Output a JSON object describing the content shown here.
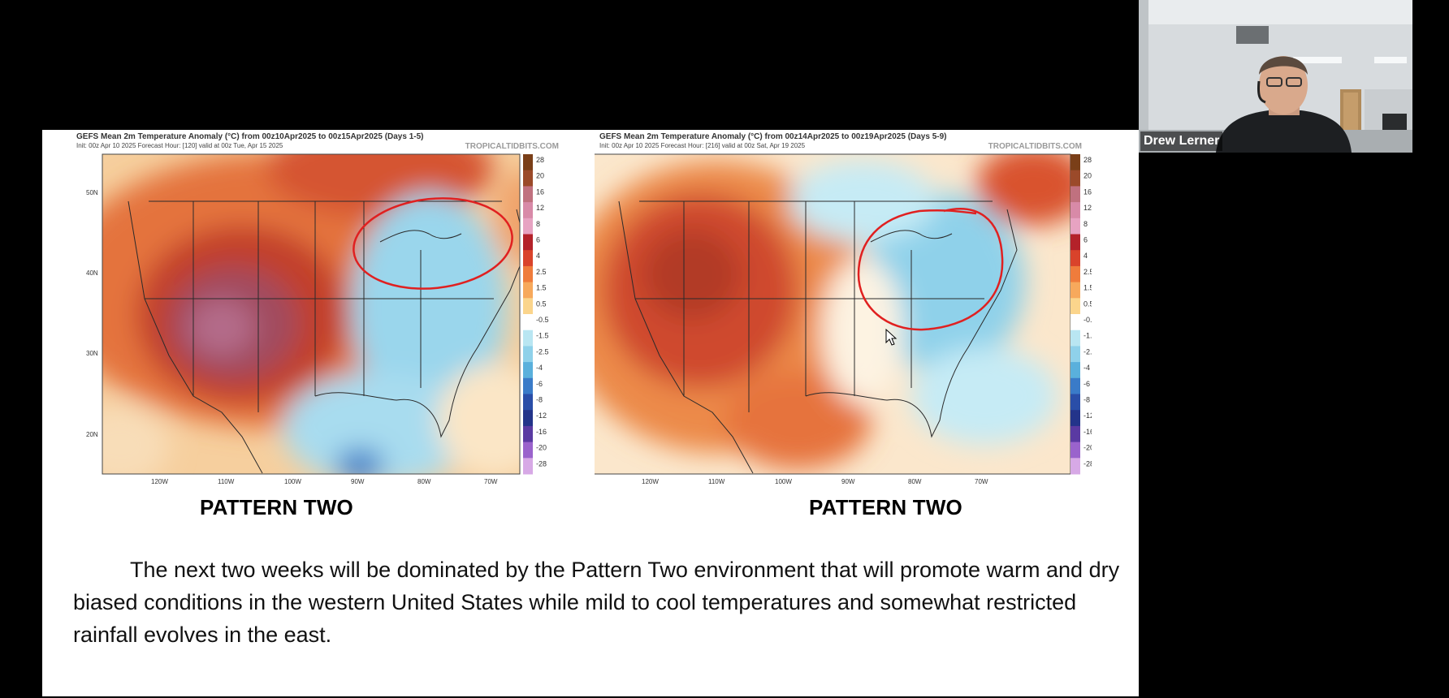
{
  "slide": {
    "maps": [
      {
        "title": "GEFS Mean 2m Temperature Anomaly (°C) from 00z10Apr2025 to 00z15Apr2025 (Days 1-5)",
        "subtitle": "Init: 00z Apr 10 2025   Forecast Hour: [120]   valid at 00z Tue, Apr 15 2025",
        "brand": "TROPICALTIDBITS.COM",
        "caption": "PATTERN TWO"
      },
      {
        "title": "GEFS Mean 2m Temperature Anomaly (°C) from 00z14Apr2025 to 00z19Apr2025 (Days 5-9)",
        "subtitle": "Init: 00z Apr 10 2025   Forecast Hour: [216]   valid at 00z Sat, Apr 19 2025",
        "brand": "TROPICALTIDBITS.COM",
        "caption": "PATTERN TWO"
      }
    ],
    "lat_labels": [
      "50N",
      "40N",
      "30N",
      "20N"
    ],
    "lon_labels": [
      "120W",
      "110W",
      "100W",
      "90W",
      "80W",
      "70W"
    ],
    "colorbar_labels": [
      "28",
      "20",
      "16",
      "12",
      "8",
      "6",
      "4",
      "2.5",
      "1.5",
      "0.5",
      "-0.5",
      "-1.5",
      "-2.5",
      "-4",
      "-6",
      "-8",
      "-12",
      "-16",
      "-20",
      "-28"
    ],
    "colorbar_colors": [
      "#7a3f18",
      "#9b4a2a",
      "#c0717f",
      "#d88aa8",
      "#e7a3c2",
      "#b4222a",
      "#d9432b",
      "#ef7c3c",
      "#f7a95c",
      "#fbd58c",
      "#ffffff",
      "#b9e6f2",
      "#8fd1ea",
      "#5ab0dc",
      "#3a7bc8",
      "#2a4ea8",
      "#23348a",
      "#5a3aa2",
      "#9a63cc",
      "#d7a9e6"
    ],
    "body_text": "The next two weeks will be dominated by the Pattern Two environment that will promote warm and dry biased conditions in the western United States while mild to cool temperatures and somewhat restricted rainfall evolves in the east."
  },
  "video": {
    "participant_name": "Drew Lerner"
  }
}
